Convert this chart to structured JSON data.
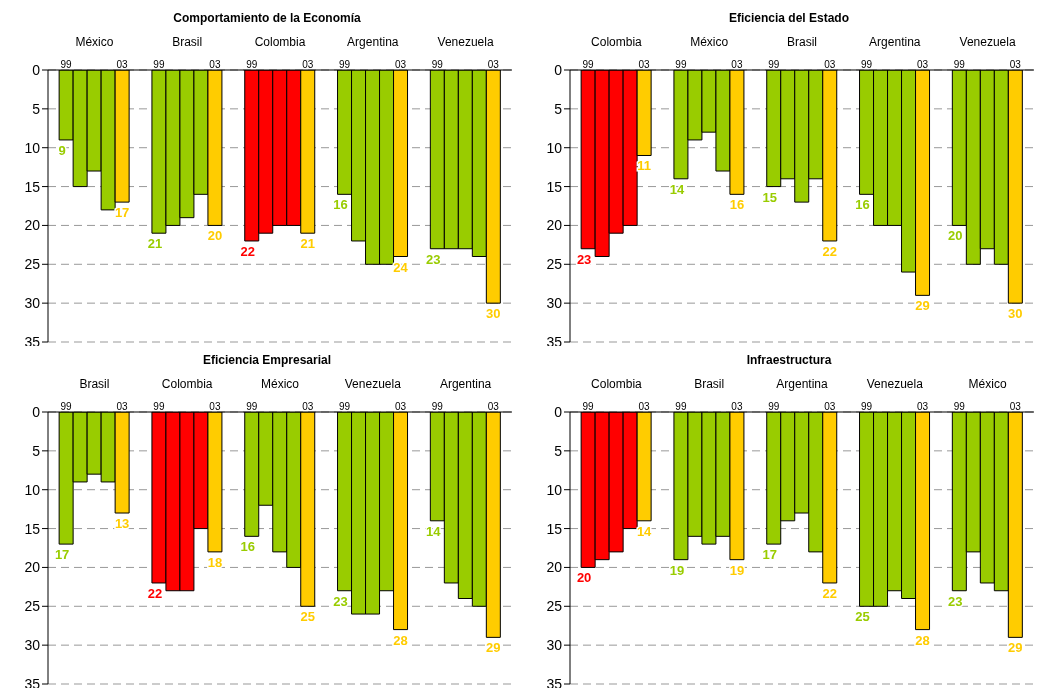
{
  "chart_data": [
    {
      "type": "bar",
      "title": "Comportamiento de la Economía",
      "categories": [
        "México",
        "Brasil",
        "Colombia",
        "Argentina",
        "Venezuela"
      ],
      "ylim": [
        35,
        0
      ],
      "yticks": [
        0,
        5,
        10,
        15,
        20,
        25,
        30,
        35
      ],
      "grid": "y",
      "series": [
        {
          "name": "99",
          "colors": [
            "#99cc00",
            "#99cc00",
            "#ff0000",
            "#99cc00",
            "#99cc00"
          ],
          "values": [
            9,
            21,
            22,
            16,
            23
          ],
          "value_labels": [
            "9",
            "21",
            "22",
            "16",
            "23"
          ]
        },
        {
          "colors": [
            "#99cc00",
            "#99cc00",
            "#ff0000",
            "#99cc00",
            "#99cc00"
          ],
          "values": [
            15,
            20,
            21,
            22,
            23
          ]
        },
        {
          "colors": [
            "#99cc00",
            "#99cc00",
            "#ff0000",
            "#99cc00",
            "#99cc00"
          ],
          "values": [
            13,
            19,
            20,
            25,
            23
          ]
        },
        {
          "colors": [
            "#99cc00",
            "#99cc00",
            "#ff0000",
            "#99cc00",
            "#99cc00"
          ],
          "values": [
            18,
            16,
            20,
            25,
            24
          ]
        },
        {
          "name": "03",
          "color": "#ffcc00",
          "values": [
            17,
            20,
            21,
            24,
            30
          ],
          "value_labels": [
            "17",
            "20",
            "21",
            "24",
            "30"
          ]
        }
      ]
    },
    {
      "type": "bar",
      "title": "Eficiencia del Estado",
      "categories": [
        "Colombia",
        "México",
        "Brasil",
        "Argentina",
        "Venezuela"
      ],
      "ylim": [
        35,
        0
      ],
      "yticks": [
        0,
        5,
        10,
        15,
        20,
        25,
        30,
        35
      ],
      "grid": "y",
      "series": [
        {
          "name": "99",
          "colors": [
            "#ff0000",
            "#99cc00",
            "#99cc00",
            "#99cc00",
            "#99cc00"
          ],
          "values": [
            23,
            14,
            15,
            16,
            20
          ],
          "value_labels": [
            "23",
            "14",
            "15",
            "16",
            "20"
          ]
        },
        {
          "colors": [
            "#ff0000",
            "#99cc00",
            "#99cc00",
            "#99cc00",
            "#99cc00"
          ],
          "values": [
            24,
            9,
            14,
            20,
            25
          ]
        },
        {
          "colors": [
            "#ff0000",
            "#99cc00",
            "#99cc00",
            "#99cc00",
            "#99cc00"
          ],
          "values": [
            21,
            8,
            17,
            20,
            23
          ]
        },
        {
          "colors": [
            "#ff0000",
            "#99cc00",
            "#99cc00",
            "#99cc00",
            "#99cc00"
          ],
          "values": [
            20,
            13,
            14,
            26,
            25
          ]
        },
        {
          "name": "03",
          "color": "#ffcc00",
          "values": [
            11,
            16,
            22,
            29,
            30
          ],
          "value_labels": [
            "11",
            "16",
            "22",
            "29",
            "30"
          ]
        }
      ]
    },
    {
      "type": "bar",
      "title": "Eficiencia Empresarial",
      "categories": [
        "Brasil",
        "Colombia",
        "México",
        "Venezuela",
        "Argentina"
      ],
      "ylim": [
        35,
        0
      ],
      "yticks": [
        0,
        5,
        10,
        15,
        20,
        25,
        30,
        35
      ],
      "grid": "y",
      "series": [
        {
          "name": "99",
          "colors": [
            "#99cc00",
            "#ff0000",
            "#99cc00",
            "#99cc00",
            "#99cc00"
          ],
          "values": [
            17,
            22,
            16,
            23,
            14
          ],
          "value_labels": [
            "17",
            "22",
            "16",
            "23",
            "14"
          ]
        },
        {
          "colors": [
            "#99cc00",
            "#ff0000",
            "#99cc00",
            "#99cc00",
            "#99cc00"
          ],
          "values": [
            9,
            23,
            12,
            26,
            22
          ]
        },
        {
          "colors": [
            "#99cc00",
            "#ff0000",
            "#99cc00",
            "#99cc00",
            "#99cc00"
          ],
          "values": [
            8,
            23,
            18,
            26,
            24
          ]
        },
        {
          "colors": [
            "#99cc00",
            "#ff0000",
            "#99cc00",
            "#99cc00",
            "#99cc00"
          ],
          "values": [
            9,
            15,
            20,
            23,
            25
          ]
        },
        {
          "name": "03",
          "color": "#ffcc00",
          "values": [
            13,
            18,
            25,
            28,
            29
          ],
          "value_labels": [
            "13",
            "18",
            "25",
            "28",
            "29"
          ]
        }
      ]
    },
    {
      "type": "bar",
      "title": "Infraestructura",
      "categories": [
        "Colombia",
        "Brasil",
        "Argentina",
        "Venezuela",
        "México"
      ],
      "ylim": [
        35,
        0
      ],
      "yticks": [
        0,
        5,
        10,
        15,
        20,
        25,
        30,
        35
      ],
      "grid": "y",
      "series": [
        {
          "name": "99",
          "colors": [
            "#ff0000",
            "#99cc00",
            "#99cc00",
            "#99cc00",
            "#99cc00"
          ],
          "values": [
            20,
            19,
            17,
            25,
            23
          ],
          "value_labels": [
            "20",
            "19",
            "17",
            "25",
            "23"
          ]
        },
        {
          "colors": [
            "#ff0000",
            "#99cc00",
            "#99cc00",
            "#99cc00",
            "#99cc00"
          ],
          "values": [
            19,
            16,
            14,
            25,
            18
          ]
        },
        {
          "colors": [
            "#ff0000",
            "#99cc00",
            "#99cc00",
            "#99cc00",
            "#99cc00"
          ],
          "values": [
            18,
            17,
            13,
            23,
            22
          ]
        },
        {
          "colors": [
            "#ff0000",
            "#99cc00",
            "#99cc00",
            "#99cc00",
            "#99cc00"
          ],
          "values": [
            15,
            16,
            18,
            24,
            23
          ]
        },
        {
          "name": "03",
          "color": "#ffcc00",
          "values": [
            14,
            19,
            22,
            28,
            29
          ],
          "value_labels": [
            "14",
            "19",
            "22",
            "28",
            "29"
          ]
        }
      ]
    }
  ]
}
